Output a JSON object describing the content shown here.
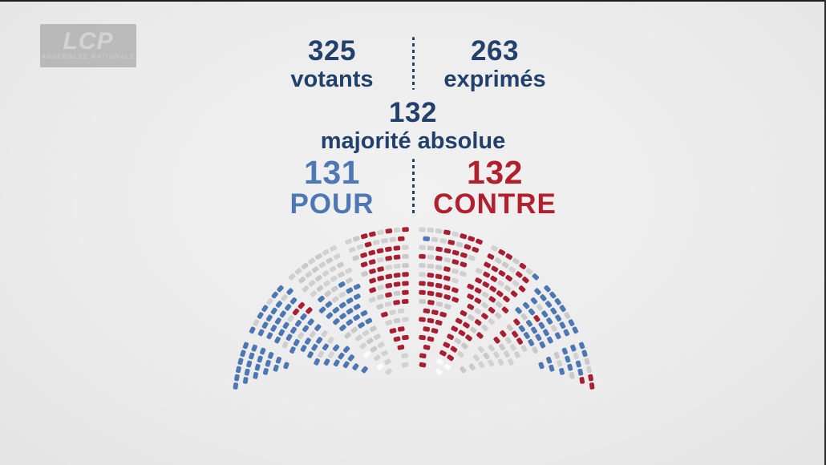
{
  "logo": {
    "title": "LCP",
    "subtitle": "ASSEMBLEE NATIONALE"
  },
  "stats": {
    "votants": {
      "value": "325",
      "label": "votants"
    },
    "exprimes": {
      "value": "263",
      "label": "exprimés"
    },
    "majorite": {
      "value": "132",
      "label": "majorité absolue"
    },
    "pour": {
      "value": "131",
      "label": "POUR"
    },
    "contre": {
      "value": "132",
      "label": "CONTRE"
    }
  },
  "colors": {
    "navy_text": "#21406b",
    "pour_text": "#4d78b4",
    "contre_text": "#b2202e",
    "background": "#ececec",
    "logo_box": "#b6b6b6"
  },
  "chart_data": {
    "type": "hemicycle",
    "description": "Assemblée nationale vote result seating chart",
    "totals": {
      "votants": 325,
      "exprimes": 263,
      "majorite_absolue": 132,
      "pour": 131,
      "contre": 132
    },
    "seat_colors": {
      "pour": "#4d77b3",
      "contre": "#a81e32",
      "gray": "#cbcbcb",
      "empty": "#fbfbfb"
    },
    "geometry": {
      "rows": 16,
      "innerRadius": 56,
      "rowPitch": 11.2,
      "seatPitch": 10.4,
      "seatLength": 8.4,
      "seatThickness": 5.8,
      "centerX": 516,
      "centerY": 510,
      "baseMarginDeg": 39,
      "marginStepDeg": 2.2,
      "aisleAngles": [
        23,
        45,
        67,
        90,
        113,
        135,
        157
      ],
      "aisleHalfWidthPx": 5.5,
      "seed": 7
    },
    "zones": [
      {
        "color": "contre",
        "rows": [
          2,
          10
        ],
        "angles": [
          88,
          110
        ],
        "p": 0.55
      },
      {
        "color": "contre",
        "rows": [
          0,
          10
        ],
        "angles": [
          66,
          88
        ],
        "p": 0.65
      },
      {
        "color": "contre",
        "rows": [
          2,
          10
        ],
        "angles": [
          46,
          66
        ],
        "p": 0.5
      },
      {
        "color": "contre",
        "rows": [
          11,
          15
        ],
        "angles": [
          78,
          110
        ],
        "p": 0.28
      },
      {
        "color": "contre",
        "rows": [
          11,
          15
        ],
        "angles": [
          46,
          78
        ],
        "p": 0.36
      },
      {
        "color": "contre",
        "rows": [
          7,
          12
        ],
        "angles": [
          30,
          46
        ],
        "p": 0.18
      },
      {
        "color": "contre",
        "rows": [
          11,
          12
        ],
        "angles": [
          136,
          141
        ],
        "p": 0.6
      },
      {
        "color": "contre",
        "rows": [
          14,
          15
        ],
        "angles": [
          6,
          10
        ],
        "p": 0.7
      },
      {
        "color": "pour",
        "rows": [
          8,
          15
        ],
        "angles": [
          157,
          177
        ],
        "p": 0.8
      },
      {
        "color": "pour",
        "rows": [
          5,
          15
        ],
        "angles": [
          135,
          157
        ],
        "p": 0.5
      },
      {
        "color": "pour",
        "rows": [
          2,
          7
        ],
        "angles": [
          140,
          162
        ],
        "p": 0.35
      },
      {
        "color": "pour",
        "rows": [
          6,
          11
        ],
        "angles": [
          113,
          135
        ],
        "p": 0.1
      },
      {
        "color": "pour",
        "rows": [
          10,
          15
        ],
        "angles": [
          23,
          48
        ],
        "p": 0.42
      },
      {
        "color": "pour",
        "rows": [
          8,
          15
        ],
        "angles": [
          5,
          23
        ],
        "p": 0.38
      },
      {
        "color": "pour",
        "rows": [
          4,
          9
        ],
        "angles": [
          8,
          25
        ],
        "p": 0.3
      },
      {
        "color": "pour",
        "rows": [
          14,
          15
        ],
        "angles": [
          84,
          88
        ],
        "p": 0.5
      },
      {
        "color": "empty",
        "rows": [
          0,
          1
        ],
        "angles": [
          40,
          140
        ],
        "p": 0.55
      },
      {
        "color": "empty",
        "rows": [
          2,
          4
        ],
        "angles": [
          80,
          100
        ],
        "p": 0.3
      },
      {
        "color": "empty",
        "rows": [
          5,
          9
        ],
        "angles": [
          8,
          24
        ],
        "p": 0.25
      },
      {
        "color": "empty",
        "rows": [
          3,
          6
        ],
        "angles": [
          145,
          162
        ],
        "p": 0.2
      },
      {
        "color": "empty",
        "rows": [
          0,
          3
        ],
        "angles": [
          115,
          140
        ],
        "p": 0.15
      },
      {
        "color": "empty",
        "rows": [
          10,
          15
        ],
        "angles": [
          157,
          177
        ],
        "p": 0.06
      }
    ]
  }
}
